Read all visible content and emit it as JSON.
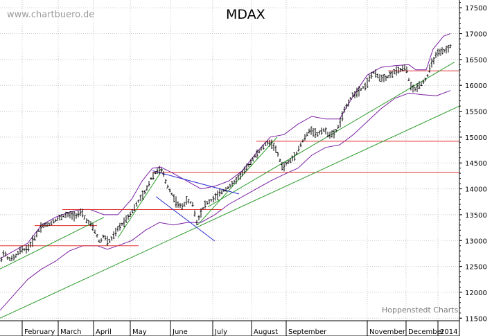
{
  "watermark": "www.chartbuero.de",
  "source": "Hoppenstedt Charts",
  "chart_data": {
    "type": "ohlc",
    "title": "MDAX",
    "ylim": [
      11450,
      17650
    ],
    "yticks": [
      11500,
      12000,
      12500,
      13000,
      13500,
      14000,
      14500,
      15000,
      15500,
      16000,
      16500,
      17000,
      17500
    ],
    "xlabels": [
      "February",
      "March",
      "April",
      "May",
      "June",
      "July",
      "August",
      "September",
      "November",
      "December",
      "2014"
    ],
    "grid": true,
    "colors": {
      "bars": "#000000",
      "bands": "#7a1fa2",
      "support": "#e03030",
      "trend": "#2a9a2a",
      "channel": "#2a2ad0",
      "grid": "#c8c8c8"
    },
    "price_path": [
      [
        0,
        12530
      ],
      [
        6,
        12820
      ],
      [
        10,
        12660
      ],
      [
        18,
        12640
      ],
      [
        24,
        12720
      ],
      [
        30,
        12820
      ],
      [
        40,
        12840
      ],
      [
        50,
        13050
      ],
      [
        60,
        13290
      ],
      [
        70,
        13310
      ],
      [
        80,
        13400
      ],
      [
        96,
        13500
      ],
      [
        108,
        13480
      ],
      [
        118,
        13540
      ],
      [
        124,
        13400
      ],
      [
        132,
        13300
      ],
      [
        138,
        13150
      ],
      [
        144,
        12960
      ],
      [
        150,
        13100
      ],
      [
        156,
        12960
      ],
      [
        162,
        13050
      ],
      [
        170,
        13220
      ],
      [
        180,
        13380
      ],
      [
        190,
        13550
      ],
      [
        200,
        13760
      ],
      [
        210,
        13950
      ],
      [
        218,
        14200
      ],
      [
        226,
        14350
      ],
      [
        234,
        14360
      ],
      [
        240,
        14100
      ],
      [
        248,
        13900
      ],
      [
        256,
        13700
      ],
      [
        262,
        13650
      ],
      [
        270,
        13780
      ],
      [
        278,
        13700
      ],
      [
        284,
        13350
      ],
      [
        290,
        13550
      ],
      [
        296,
        13700
      ],
      [
        306,
        13780
      ],
      [
        316,
        13900
      ],
      [
        326,
        14000
      ],
      [
        336,
        14100
      ],
      [
        346,
        14250
      ],
      [
        356,
        14400
      ],
      [
        366,
        14600
      ],
      [
        376,
        14750
      ],
      [
        386,
        14900
      ],
      [
        394,
        14850
      ],
      [
        400,
        14700
      ],
      [
        408,
        14400
      ],
      [
        414,
        14500
      ],
      [
        420,
        14550
      ],
      [
        428,
        14700
      ],
      [
        438,
        14950
      ],
      [
        448,
        15150
      ],
      [
        458,
        15050
      ],
      [
        466,
        15150
      ],
      [
        474,
        15050
      ],
      [
        482,
        15050
      ],
      [
        490,
        15250
      ],
      [
        498,
        15550
      ],
      [
        508,
        15800
      ],
      [
        518,
        15900
      ],
      [
        528,
        16000
      ],
      [
        538,
        16250
      ],
      [
        548,
        16150
      ],
      [
        558,
        16150
      ],
      [
        568,
        16250
      ],
      [
        578,
        16300
      ],
      [
        586,
        16350
      ],
      [
        592,
        16000
      ],
      [
        598,
        15900
      ],
      [
        604,
        16000
      ],
      [
        610,
        16050
      ],
      [
        616,
        16150
      ],
      [
        622,
        16400
      ],
      [
        630,
        16600
      ],
      [
        638,
        16650
      ],
      [
        646,
        16700
      ],
      [
        652,
        16780
      ]
    ],
    "upper_band": [
      [
        0,
        12650
      ],
      [
        20,
        12800
      ],
      [
        40,
        12950
      ],
      [
        60,
        13300
      ],
      [
        80,
        13450
      ],
      [
        100,
        13550
      ],
      [
        118,
        13600
      ],
      [
        130,
        13600
      ],
      [
        150,
        13500
      ],
      [
        170,
        13500
      ],
      [
        190,
        13800
      ],
      [
        205,
        14150
      ],
      [
        220,
        14400
      ],
      [
        232,
        14420
      ],
      [
        250,
        14300
      ],
      [
        270,
        14150
      ],
      [
        290,
        14000
      ],
      [
        310,
        14050
      ],
      [
        330,
        14150
      ],
      [
        350,
        14350
      ],
      [
        370,
        14700
      ],
      [
        390,
        15000
      ],
      [
        410,
        15050
      ],
      [
        430,
        15250
      ],
      [
        450,
        15400
      ],
      [
        470,
        15350
      ],
      [
        490,
        15350
      ],
      [
        510,
        15800
      ],
      [
        530,
        16200
      ],
      [
        550,
        16350
      ],
      [
        570,
        16380
      ],
      [
        590,
        16400
      ],
      [
        600,
        16300
      ],
      [
        615,
        16300
      ],
      [
        625,
        16700
      ],
      [
        640,
        16950
      ],
      [
        650,
        17000
      ]
    ],
    "lower_band": [
      [
        0,
        11650
      ],
      [
        20,
        11950
      ],
      [
        40,
        12250
      ],
      [
        60,
        12450
      ],
      [
        80,
        12600
      ],
      [
        100,
        12800
      ],
      [
        120,
        12900
      ],
      [
        140,
        12900
      ],
      [
        155,
        12830
      ],
      [
        170,
        12900
      ],
      [
        190,
        13000
      ],
      [
        210,
        13200
      ],
      [
        230,
        13350
      ],
      [
        250,
        13300
      ],
      [
        270,
        13350
      ],
      [
        290,
        13350
      ],
      [
        310,
        13500
      ],
      [
        330,
        13700
      ],
      [
        350,
        13850
      ],
      [
        370,
        14000
      ],
      [
        390,
        14150
      ],
      [
        410,
        14280
      ],
      [
        430,
        14400
      ],
      [
        450,
        14650
      ],
      [
        470,
        14800
      ],
      [
        490,
        14850
      ],
      [
        510,
        15050
      ],
      [
        530,
        15300
      ],
      [
        550,
        15550
      ],
      [
        570,
        15750
      ],
      [
        590,
        15850
      ],
      [
        610,
        15820
      ],
      [
        630,
        15800
      ],
      [
        650,
        15900
      ]
    ],
    "support_lines": [
      {
        "x1": 0,
        "x2": 200,
        "y": 12900
      },
      {
        "x1": 50,
        "x2": 140,
        "y": 13290
      },
      {
        "x1": 90,
        "x2": 320,
        "y": 13600
      },
      {
        "x1": 220,
        "x2": 663,
        "y": 14320
      },
      {
        "x1": 370,
        "x2": 663,
        "y": 14920
      },
      {
        "x1": 560,
        "x2": 663,
        "y": 16280
      }
    ],
    "trend_lines": [
      {
        "x1": 0,
        "x2": 663,
        "y1": 11500,
        "y2": 15600
      },
      {
        "x1": 0,
        "x2": 150,
        "y1": 12450,
        "y2": 13450
      },
      {
        "x1": 170,
        "x2": 235,
        "y1": 13050,
        "y2": 14380
      },
      {
        "x1": 285,
        "x2": 400,
        "y1": 13300,
        "y2": 15000
      },
      {
        "x1": 300,
        "x2": 656,
        "y1": 13650,
        "y2": 16450
      }
    ],
    "channel_lines": [
      {
        "x1": 220,
        "x2": 345,
        "y1": 14350,
        "y2": 13900
      },
      {
        "x1": 225,
        "x2": 310,
        "y1": 13850,
        "y2": 12990
      }
    ]
  }
}
